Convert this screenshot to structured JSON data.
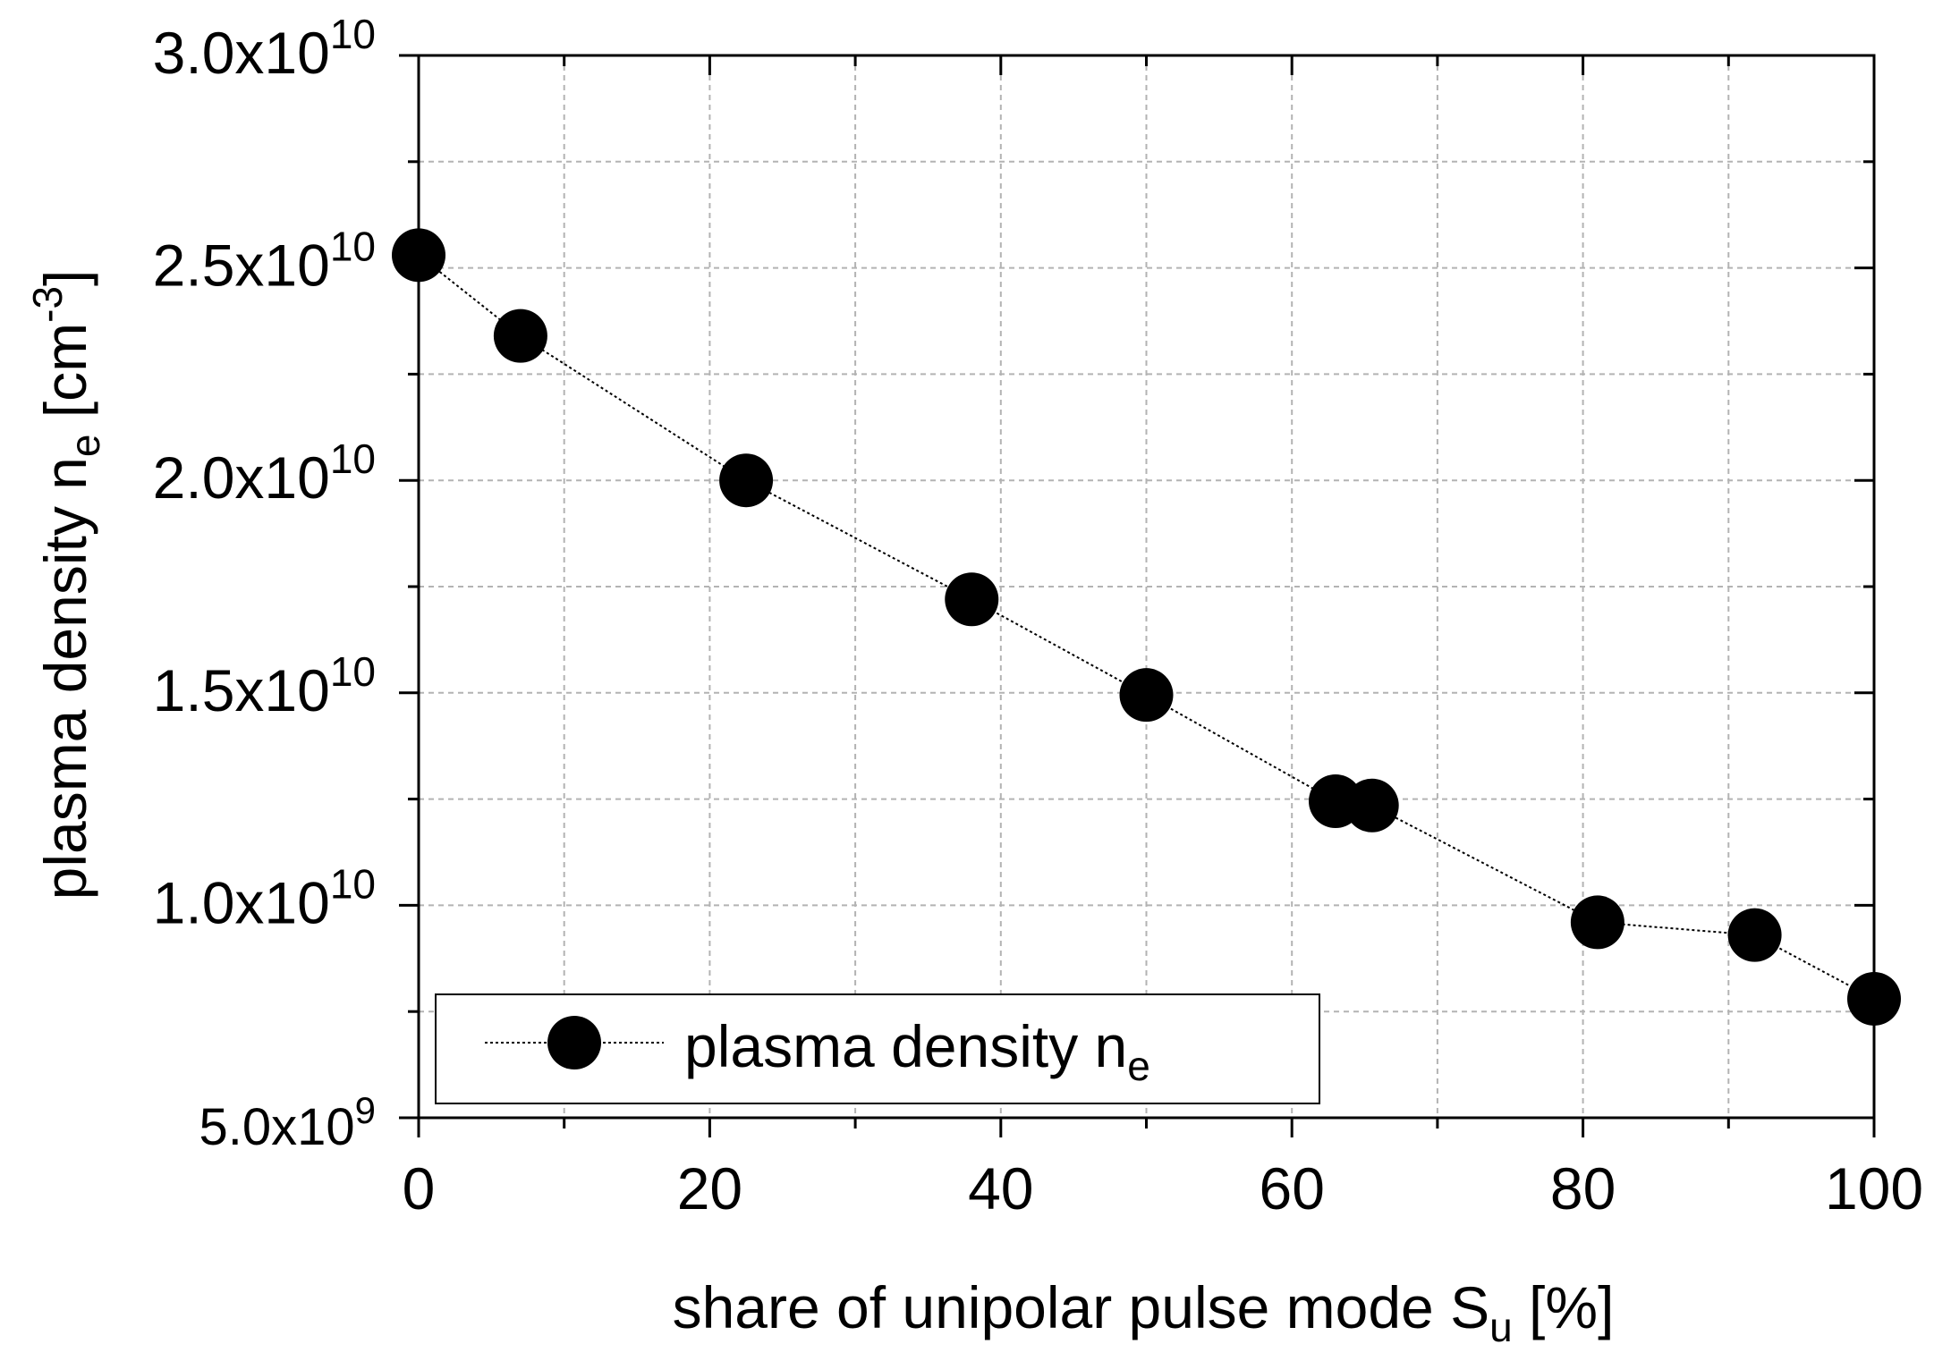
{
  "chart_data": {
    "type": "line",
    "title": "",
    "xlabel": "share of unipolar pulse mode S",
    "xlabel_sub": "u",
    "xlabel_suffix": " [%]",
    "ylabel": "plasma density n",
    "ylabel_sub": "e",
    "ylabel_unit_prefix": " [cm",
    "ylabel_unit_sup": "-3",
    "ylabel_unit_suffix": "]",
    "xlim": [
      0,
      100
    ],
    "ylim": [
      5000000000.0,
      30000000000.0
    ],
    "x_ticks": [
      0,
      20,
      40,
      60,
      80,
      100
    ],
    "x_tick_labels": [
      "0",
      "20",
      "40",
      "60",
      "80",
      "100"
    ],
    "y_ticks": [
      5000000000.0,
      10000000000.0,
      15000000000.0,
      20000000000.0,
      25000000000.0,
      30000000000.0
    ],
    "y_tick_labels": [
      {
        "mantissa": "5.0x10",
        "exponent": "9"
      },
      {
        "mantissa": "1.0x10",
        "exponent": "10"
      },
      {
        "mantissa": "1.5x10",
        "exponent": "10"
      },
      {
        "mantissa": "2.0x10",
        "exponent": "10"
      },
      {
        "mantissa": "2.5x10",
        "exponent": "10"
      },
      {
        "mantissa": "3.0x10",
        "exponent": "10"
      }
    ],
    "grid": true,
    "legend_position": "bottom-left",
    "series": [
      {
        "name": "plasma density n",
        "name_sub": "e",
        "x": [
          0,
          7,
          22.5,
          38,
          50,
          63,
          65.5,
          81,
          91.8,
          100
        ],
        "y": [
          25300000000.0,
          23400000000.0,
          20000000000.0,
          17200000000.0,
          14950000000.0,
          12450000000.0,
          12350000000.0,
          9600000000.0,
          9300000000.0,
          7800000000.0
        ]
      }
    ]
  }
}
